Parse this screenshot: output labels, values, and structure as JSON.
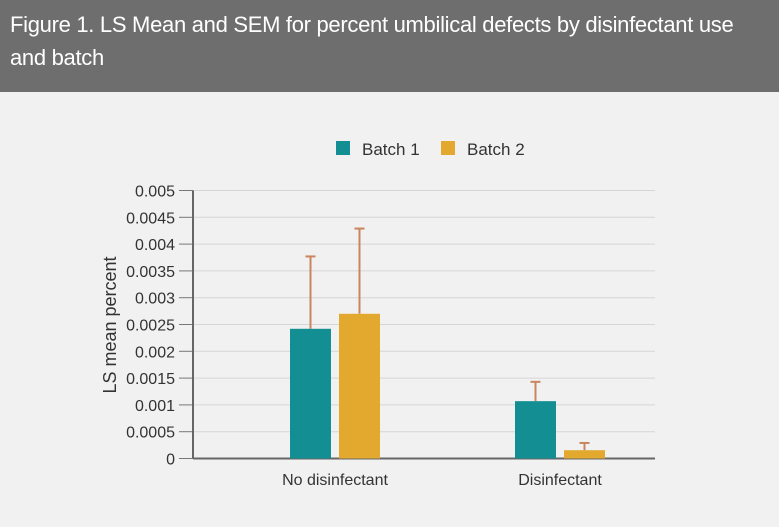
{
  "chart_data": {
    "type": "bar",
    "title": "Figure 1. LS Mean and SEM for percent umbilical defects by disinfectant use and batch",
    "xlabel": "",
    "ylabel": "LS mean percent",
    "ylim": [
      0,
      0.005
    ],
    "yticks": [
      "0",
      "0.0005",
      "0.001",
      "0.0015",
      "0.002",
      "0.0025",
      "0.003",
      "0.0035",
      "0.004",
      "0.0045",
      "0.005"
    ],
    "categories": [
      "No disinfectant",
      "Disinfectant"
    ],
    "legend_position": "top-center",
    "grid": true,
    "series": [
      {
        "name": "Batch 1",
        "color": "#138f94",
        "values": [
          0.00242,
          0.00107
        ],
        "error_upper": [
          0.00377,
          0.00143
        ]
      },
      {
        "name": "Batch 2",
        "color": "#e3a92f",
        "values": [
          0.0027,
          0.000155
        ],
        "error_upper": [
          0.00429,
          0.00029
        ]
      }
    ],
    "error_color": "#c9855e"
  }
}
